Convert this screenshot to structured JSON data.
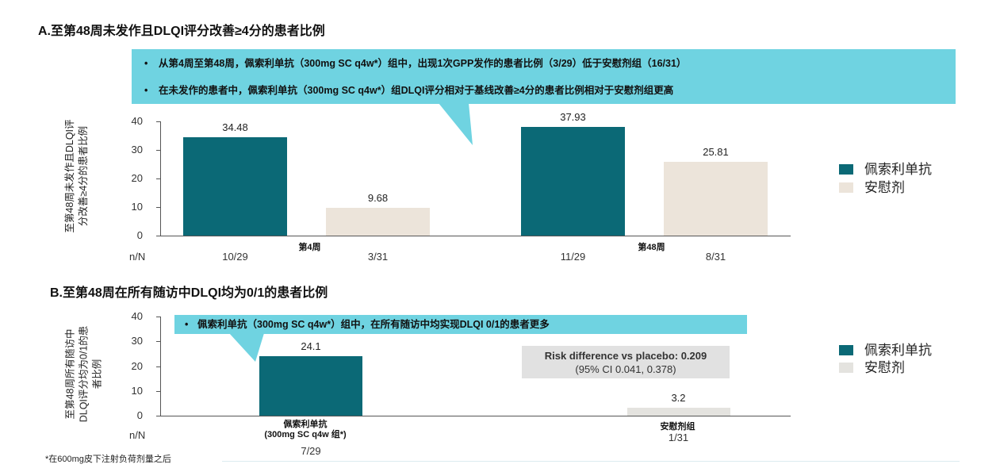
{
  "footnote": "*在600mg皮下注射负荷剂量之后",
  "colors": {
    "treatment": "#0b6976",
    "placebo_a": "#ece4da",
    "placebo_b": "#e4e3df",
    "callout": "#6fd3e1",
    "risk_box": "#e1e1e1",
    "divider": "#dcecef"
  },
  "chart_data": [
    {
      "type": "bar",
      "title": "A.至第48周未发作且DLQI评分改善≥4分的患者比例",
      "callout": {
        "bullet": "•",
        "items": [
          "从第4周至第48周，佩索利单抗（300mg SC q4w*）组中，出现1次GPP发作的患者比例（3/29）低于安慰剂组（16/31）",
          "在未发作的患者中，佩索利单抗（300mg SC q4w*）组DLQI评分相对于基线改善≥4分的患者比例相对于安慰剂组更高"
        ]
      },
      "ylabel_lines": [
        "至第48周未发作且DLQI评",
        "分改善≥4分的患者比例"
      ],
      "ylim": [
        0,
        40
      ],
      "yticks": [
        0,
        10,
        20,
        30,
        40
      ],
      "n_over_N_label": "n/N",
      "categories": [
        "第4周",
        "第48周"
      ],
      "series": [
        {
          "name": "佩索利单抗",
          "color": "#0b6976",
          "values": [
            34.48,
            37.93
          ],
          "n_over_N": [
            "10/29",
            "11/29"
          ]
        },
        {
          "name": "安慰剂",
          "color": "#ece4da",
          "values": [
            9.68,
            25.81
          ],
          "n_over_N": [
            "3/31",
            "8/31"
          ]
        }
      ],
      "grid": false,
      "legend": "right"
    },
    {
      "type": "bar",
      "title": "B.至第48周在所有随访中DLQI均为0/1的患者比例",
      "callout": {
        "bullet": "•",
        "items": [
          "佩索利单抗（300mg SC q4w*）组中，在所有随访中均实现DLQI 0/1的患者更多"
        ]
      },
      "ylabel_lines": [
        "至第48周所有随访中",
        "DLQI评分均为0/1的患",
        "者比例"
      ],
      "ylim": [
        0,
        40
      ],
      "yticks": [
        0,
        10,
        20,
        30,
        40
      ],
      "n_over_N_label": "n/N",
      "categories": [
        [
          "佩索利单抗",
          "(300mg SC q4w 组*)"
        ],
        [
          "安慰剂组"
        ]
      ],
      "values": [
        24.1,
        3.2
      ],
      "bar_colors": [
        "#0b6976",
        "#e4e3df"
      ],
      "n_over_N": [
        "7/29",
        "1/31"
      ],
      "legend_entries": [
        {
          "name": "佩索利单抗",
          "color": "#0b6976"
        },
        {
          "name": "安慰剂",
          "color": "#e4e3df"
        }
      ],
      "annotation": [
        "Risk difference vs placebo: 0.209",
        "(95% CI 0.041, 0.378)"
      ],
      "grid": false,
      "legend": "right"
    }
  ]
}
